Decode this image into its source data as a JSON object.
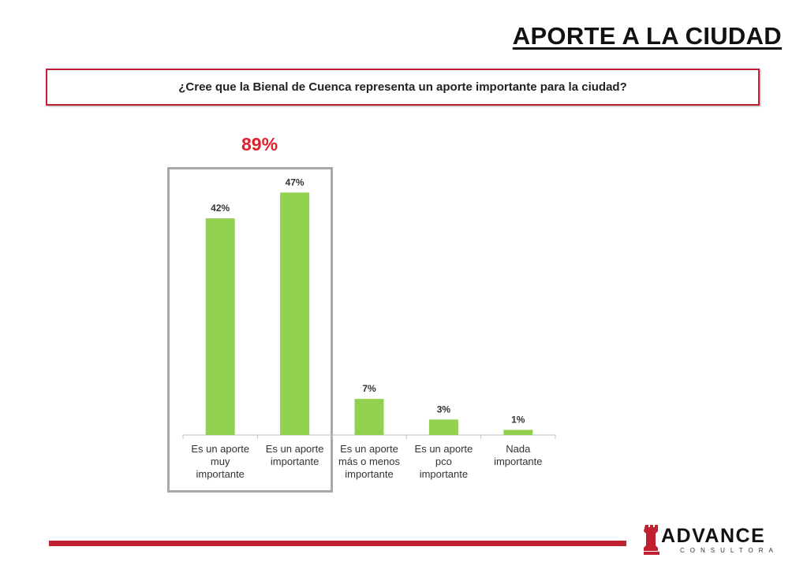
{
  "header": {
    "title": "APORTE A LA CIUDAD",
    "question": "¿Cree que la Bienal de Cuenca representa un aporte importante para la ciudad?"
  },
  "highlight": {
    "total_label": "89%"
  },
  "chart_data": {
    "type": "bar",
    "categories": [
      [
        "Es un aporte",
        "muy",
        "importante"
      ],
      [
        "Es un aporte",
        "importante"
      ],
      [
        "Es un aporte",
        "más o menos",
        "importante"
      ],
      [
        "Es un aporte",
        "pco",
        "importante"
      ],
      [
        "Nada",
        "importante"
      ]
    ],
    "values": [
      42,
      47,
      7,
      3,
      1
    ],
    "value_labels": [
      "42%",
      "47%",
      "7%",
      "3%",
      "1%"
    ],
    "ylim": [
      0,
      55
    ],
    "bar_color": "#92d050",
    "grid": false
  },
  "logo": {
    "name": "ADVANCE",
    "subtitle": "CONSULTORA"
  },
  "colors": {
    "accent": "#c0202f",
    "highlight_text": "#e0202a"
  }
}
